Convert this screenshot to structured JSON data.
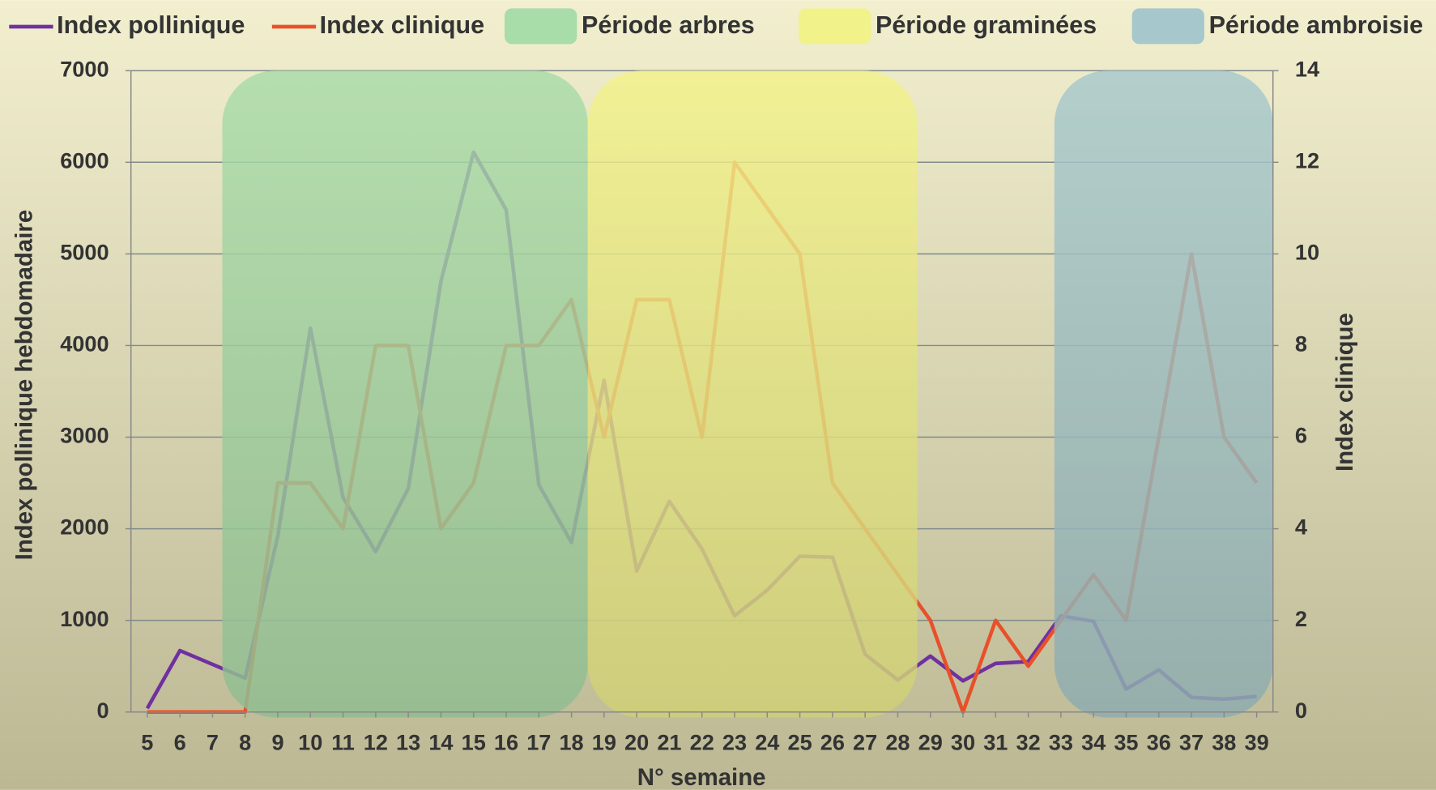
{
  "chart_data": {
    "type": "line",
    "x_label": "N° semaine",
    "y_label": "Index pollinique hebdomadaire",
    "y2_label": "Index clinique",
    "x": [
      5,
      6,
      7,
      8,
      9,
      10,
      11,
      12,
      13,
      14,
      15,
      16,
      17,
      18,
      19,
      20,
      21,
      22,
      23,
      24,
      25,
      26,
      27,
      28,
      29,
      30,
      31,
      32,
      33,
      34,
      35,
      36,
      37,
      38,
      39
    ],
    "xlim": [
      4.5,
      39.5
    ],
    "ylim": [
      0,
      7000
    ],
    "yticks": [
      0,
      1000,
      2000,
      3000,
      4000,
      5000,
      6000,
      7000
    ],
    "y2lim": [
      0,
      14
    ],
    "y2ticks": [
      0,
      2,
      4,
      6,
      8,
      10,
      12,
      14
    ],
    "grid": true,
    "series": [
      {
        "name": "Index pollinique",
        "color": "#7030a0",
        "values": [
          40,
          670,
          520,
          370,
          1920,
          4190,
          2340,
          1750,
          2440,
          4700,
          6110,
          5480,
          2480,
          1850,
          3620,
          1540,
          2300,
          1780,
          1050,
          1330,
          1700,
          1690,
          630,
          350,
          610,
          340,
          530,
          550,
          1050,
          990,
          250,
          460,
          160,
          140,
          170
        ]
      },
      {
        "name": "Index clinique",
        "color": "#e8502a",
        "axis": "y2",
        "values": [
          0,
          0,
          0,
          0,
          5,
          5,
          4,
          8,
          8,
          4,
          5,
          8,
          8,
          9,
          6,
          9,
          9,
          6,
          12,
          11,
          10,
          5,
          4,
          3,
          2,
          0,
          2,
          1,
          2,
          3,
          2,
          6,
          10,
          6,
          5
        ]
      }
    ],
    "periods": [
      {
        "name": "Période arbres",
        "color": "#a8dca8",
        "start": 7.3,
        "end": 18.5
      },
      {
        "name": "Période graminées",
        "color": "#f2f28a",
        "start": 18.5,
        "end": 28.6
      },
      {
        "name": "Période ambroisie",
        "color": "#a6c8cc",
        "start": 32.8,
        "end": 39.5
      }
    ]
  }
}
